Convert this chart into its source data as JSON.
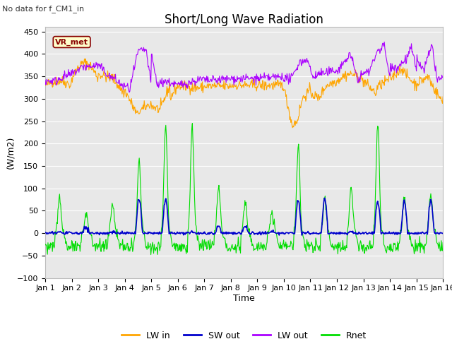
{
  "title": "Short/Long Wave Radiation",
  "no_data_text": "No data for f_CM1_in",
  "station_label": "VR_met",
  "ylabel": "(W/m2)",
  "xlabel": "Time",
  "ylim": [
    -100,
    460
  ],
  "yticks": [
    -100,
    -50,
    0,
    50,
    100,
    150,
    200,
    250,
    300,
    350,
    400,
    450
  ],
  "xlim": [
    0,
    15
  ],
  "xtick_labels": [
    "Jan 1",
    "Jan 2",
    "Jan 3",
    "Jan 4",
    "Jan 5",
    "Jan 6",
    "Jan 7",
    "Jan 8",
    "Jan 9",
    "Jan 10",
    "Jan 11",
    "Jan 12",
    "Jan 13",
    "Jan 14",
    "Jan 15",
    "Jan 16"
  ],
  "colors": {
    "LW_in": "#FFA500",
    "SW_out": "#0000CC",
    "LW_out": "#AA00FF",
    "Rnet": "#00DD00"
  },
  "bg_color": "#FFFFFF",
  "plot_bg_color": "#E8E8E8",
  "title_fontsize": 12,
  "label_fontsize": 9,
  "tick_fontsize": 8,
  "grid_color": "#FFFFFF",
  "station_box_facecolor": "#FFFFCC",
  "station_box_edgecolor": "#880000"
}
